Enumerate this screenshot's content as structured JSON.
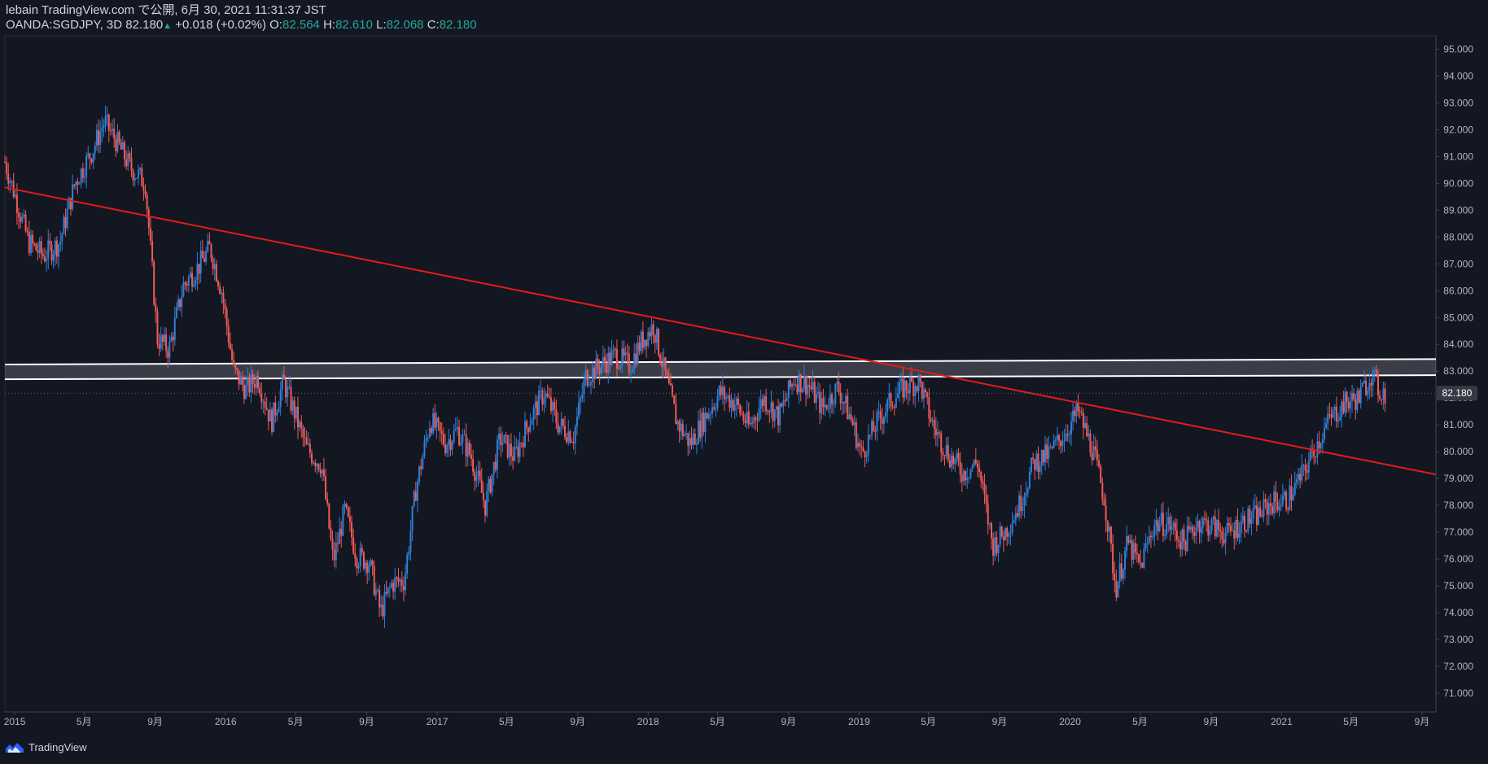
{
  "header": {
    "publisher_line": "lebain TradingView.com で公開, 6月 30, 2021 11:31:37 JST",
    "symbol": "OANDA:SGDJPY, 3D",
    "last": "82.180",
    "change": "+0.018 (+0.02%)",
    "o_label": "O:",
    "o_value": "82.564",
    "h_label": "H:",
    "h_value": "82.610",
    "l_label": "L:",
    "l_value": "82.068",
    "c_label": "C:",
    "c_value": "82.180"
  },
  "brand": {
    "name": "TradingView",
    "icon": "tradingview-logo-icon"
  },
  "colors": {
    "background": "#131722",
    "up": "#2f7fd6",
    "down": "#f05a56",
    "trendline": "#e31b1b",
    "zone_border": "#ffffff",
    "axis_text": "#b2b5be",
    "price_label_bg": "#363a45"
  },
  "chart_data": {
    "type": "candlestick",
    "symbol": "OANDA:SGDJPY",
    "interval": "3D",
    "y_axis": {
      "range": [
        70.3,
        95.5
      ],
      "ticks": [
        "95.000",
        "94.000",
        "93.000",
        "92.000",
        "91.000",
        "90.000",
        "89.000",
        "88.000",
        "87.000",
        "86.000",
        "85.000",
        "84.000",
        "83.000",
        "82.000",
        "81.000",
        "80.000",
        "79.000",
        "78.000",
        "77.000",
        "76.000",
        "75.000",
        "74.000",
        "73.000",
        "72.000",
        "71.000"
      ],
      "current_price_label": "82.180"
    },
    "x_axis": {
      "range": [
        "2014-12-15",
        "2021-09-25"
      ],
      "ticks": [
        {
          "date": "2015-01-01",
          "label": "2015"
        },
        {
          "date": "2015-05-01",
          "label": "5月"
        },
        {
          "date": "2015-09-01",
          "label": "9月"
        },
        {
          "date": "2016-01-01",
          "label": "2016"
        },
        {
          "date": "2016-05-01",
          "label": "5月"
        },
        {
          "date": "2016-09-01",
          "label": "9月"
        },
        {
          "date": "2017-01-01",
          "label": "2017"
        },
        {
          "date": "2017-05-01",
          "label": "5月"
        },
        {
          "date": "2017-09-01",
          "label": "9月"
        },
        {
          "date": "2018-01-01",
          "label": "2018"
        },
        {
          "date": "2018-05-01",
          "label": "5月"
        },
        {
          "date": "2018-09-01",
          "label": "9月"
        },
        {
          "date": "2019-01-01",
          "label": "2019"
        },
        {
          "date": "2019-05-01",
          "label": "5月"
        },
        {
          "date": "2019-09-01",
          "label": "9月"
        },
        {
          "date": "2020-01-01",
          "label": "2020"
        },
        {
          "date": "2020-05-01",
          "label": "5月"
        },
        {
          "date": "2020-09-01",
          "label": "9月"
        },
        {
          "date": "2021-01-01",
          "label": "2021"
        },
        {
          "date": "2021-05-01",
          "label": "5月"
        },
        {
          "date": "2021-09-01",
          "label": "9月"
        }
      ]
    },
    "close_path": [
      [
        "2014-12-15",
        90.8
      ],
      [
        "2015-01-01",
        89.6
      ],
      [
        "2015-01-25",
        87.8
      ],
      [
        "2015-02-20",
        87.3
      ],
      [
        "2015-03-20",
        87.8
      ],
      [
        "2015-04-15",
        90.0
      ],
      [
        "2015-05-15",
        91.2
      ],
      [
        "2015-06-05",
        92.3
      ],
      [
        "2015-06-25",
        91.6
      ],
      [
        "2015-07-20",
        90.6
      ],
      [
        "2015-08-15",
        90.0
      ],
      [
        "2015-09-05",
        84.2
      ],
      [
        "2015-09-25",
        83.8
      ],
      [
        "2015-10-20",
        86.2
      ],
      [
        "2015-11-15",
        86.9
      ],
      [
        "2015-12-05",
        87.6
      ],
      [
        "2015-12-25",
        86.0
      ],
      [
        "2016-01-15",
        83.0
      ],
      [
        "2016-02-05",
        82.3
      ],
      [
        "2016-02-25",
        82.8
      ],
      [
        "2016-03-20",
        81.1
      ],
      [
        "2016-04-10",
        82.6
      ],
      [
        "2016-04-30",
        81.4
      ],
      [
        "2016-05-20",
        80.1
      ],
      [
        "2016-06-15",
        79.5
      ],
      [
        "2016-07-05",
        75.9
      ],
      [
        "2016-07-25",
        77.8
      ],
      [
        "2016-08-15",
        76.1
      ],
      [
        "2016-09-05",
        75.9
      ],
      [
        "2016-09-25",
        74.0
      ],
      [
        "2016-10-15",
        75.1
      ],
      [
        "2016-11-05",
        75.2
      ],
      [
        "2016-11-25",
        78.6
      ],
      [
        "2016-12-20",
        81.2
      ],
      [
        "2017-01-15",
        80.3
      ],
      [
        "2017-02-05",
        80.8
      ],
      [
        "2017-03-01",
        79.8
      ],
      [
        "2017-03-25",
        78.0
      ],
      [
        "2017-04-20",
        80.5
      ],
      [
        "2017-05-15",
        79.8
      ],
      [
        "2017-06-10",
        81.2
      ],
      [
        "2017-07-05",
        82.2
      ],
      [
        "2017-07-30",
        81.0
      ],
      [
        "2017-08-25",
        80.6
      ],
      [
        "2017-09-15",
        82.8
      ],
      [
        "2017-10-10",
        83.2
      ],
      [
        "2017-11-05",
        83.6
      ],
      [
        "2017-11-30",
        83.2
      ],
      [
        "2017-12-20",
        84.1
      ],
      [
        "2018-01-10",
        84.7
      ],
      [
        "2018-01-30",
        82.9
      ],
      [
        "2018-02-20",
        81.1
      ],
      [
        "2018-03-15",
        80.3
      ],
      [
        "2018-04-10",
        81.3
      ],
      [
        "2018-05-05",
        82.2
      ],
      [
        "2018-06-01",
        81.8
      ],
      [
        "2018-06-25",
        80.9
      ],
      [
        "2018-07-20",
        82.0
      ],
      [
        "2018-08-15",
        81.3
      ],
      [
        "2018-09-10",
        82.7
      ],
      [
        "2018-10-05",
        82.5
      ],
      [
        "2018-10-30",
        81.6
      ],
      [
        "2018-11-25",
        82.4
      ],
      [
        "2018-12-20",
        81.1
      ],
      [
        "2019-01-05",
        79.9
      ],
      [
        "2019-01-30",
        81.0
      ],
      [
        "2019-02-25",
        81.9
      ],
      [
        "2019-03-20",
        82.4
      ],
      [
        "2019-04-15",
        82.6
      ],
      [
        "2019-05-10",
        80.9
      ],
      [
        "2019-06-05",
        79.9
      ],
      [
        "2019-06-30",
        79.2
      ],
      [
        "2019-07-25",
        79.6
      ],
      [
        "2019-08-20",
        76.5
      ],
      [
        "2019-09-10",
        77.0
      ],
      [
        "2019-10-05",
        78.0
      ],
      [
        "2019-10-30",
        79.6
      ],
      [
        "2019-11-25",
        79.9
      ],
      [
        "2019-12-20",
        80.6
      ],
      [
        "2020-01-15",
        81.5
      ],
      [
        "2020-02-10",
        80.0
      ],
      [
        "2020-03-01",
        78.2
      ],
      [
        "2020-03-20",
        74.9
      ],
      [
        "2020-04-10",
        76.6
      ],
      [
        "2020-05-01",
        75.7
      ],
      [
        "2020-05-25",
        77.3
      ],
      [
        "2020-06-20",
        77.3
      ],
      [
        "2020-07-15",
        76.6
      ],
      [
        "2020-08-10",
        77.4
      ],
      [
        "2020-09-05",
        77.2
      ],
      [
        "2020-09-30",
        76.9
      ],
      [
        "2020-10-25",
        77.4
      ],
      [
        "2020-11-20",
        77.6
      ],
      [
        "2020-12-15",
        78.1
      ],
      [
        "2021-01-10",
        78.2
      ],
      [
        "2021-02-05",
        79.1
      ],
      [
        "2021-03-01",
        80.2
      ],
      [
        "2021-03-25",
        81.2
      ],
      [
        "2021-04-20",
        81.8
      ],
      [
        "2021-05-15",
        82.0
      ],
      [
        "2021-06-05",
        82.9
      ],
      [
        "2021-06-18",
        82.3
      ],
      [
        "2021-06-30",
        82.18
      ]
    ],
    "annotations": {
      "trendline": {
        "type": "line",
        "start": [
          "2014-12-15",
          89.85
        ],
        "end": [
          "2021-09-25",
          79.15
        ]
      },
      "resistance_zone": {
        "type": "rectangle",
        "top_start": 83.25,
        "top_end": 83.45,
        "bottom_start": 82.7,
        "bottom_end": 82.85
      }
    }
  }
}
